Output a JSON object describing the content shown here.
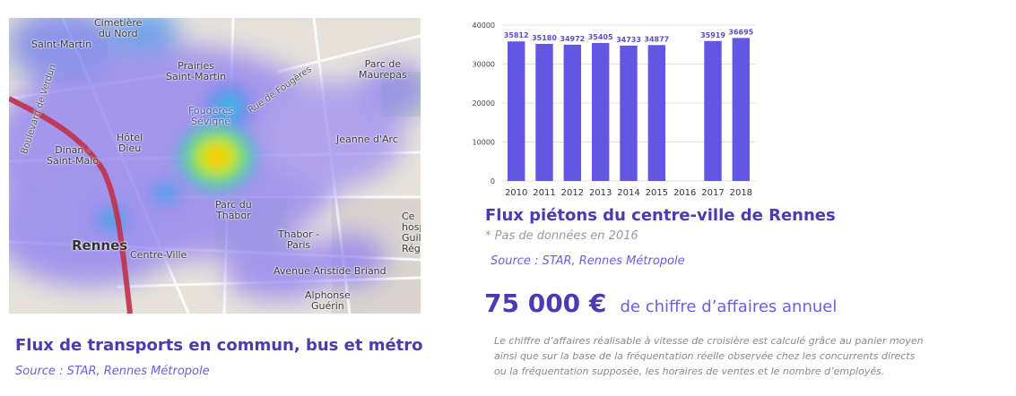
{
  "map": {
    "labels": {
      "cimetiere": "Cimetière\ndu Nord",
      "saint_martin": "Saint-Martin",
      "prairies": "Prairies\nSaint-Martin",
      "parc_maurepas": "Parc de\nMaurepas",
      "fougeres": "Fougères\nSévigné",
      "rue_fougeres": "Rue de Fougères",
      "bd_verdun": "Boulevard de Verdun",
      "hotel_dieu": "Hôtel\nDieu",
      "dinan": "Dinan -\nSaint-Malo",
      "jeanne": "Jeanne d'Arc",
      "parc_thabor": "Parc du\nThabor",
      "thabor_paris": "Thabor -\nParis",
      "rennes": "Rennes",
      "centre_ville": "Centre-Ville",
      "avenue": "Avenue Aristide Briand",
      "alphonse": "Alphonse\nGuérin",
      "hopital": "Ce\nhospi\nGuill\nRég"
    },
    "title": "Flux de transports en commun, bus et métro",
    "source": "Source : STAR, Rennes Métropole"
  },
  "pedestrian": {
    "title": "Flux piétons du centre-ville de Rennes",
    "note": "* Pas de données en 2016",
    "source": "Source : STAR, Rennes Métropole"
  },
  "chart_data": {
    "type": "bar",
    "categories": [
      "2010",
      "2011",
      "2012",
      "2013",
      "2014",
      "2015",
      "2016",
      "2017",
      "2018"
    ],
    "values": [
      35812,
      35180,
      34972,
      35405,
      34733,
      34877,
      null,
      35919,
      36695
    ],
    "data_labels": [
      "35812",
      "35180",
      "34972",
      "35405",
      "34733",
      "34877",
      "",
      "35919",
      "36695"
    ],
    "ylim": [
      0,
      40000
    ],
    "yticks": [
      0,
      10000,
      20000,
      30000,
      40000
    ],
    "grid": true,
    "bar_color": "#6257e3",
    "label_color": "#5a4fcf"
  },
  "revenue": {
    "amount": "75 000 €",
    "text": "de chiffre d’affaires annuel",
    "description": [
      "Le chiffre d’affaires réalisable à vitesse de croisière est calculé grâce au panier moyen",
      "ainsi que sur la base de la fréquentation réelle observée chez les concurrents directs",
      "ou la fréquentation supposée, les horaires de ventes et le nombre d’employés."
    ]
  },
  "colors": {
    "title_purple": "#4b3bb0",
    "accent_purple": "#6d5ee0",
    "grey_text": "#8a8a8a"
  }
}
